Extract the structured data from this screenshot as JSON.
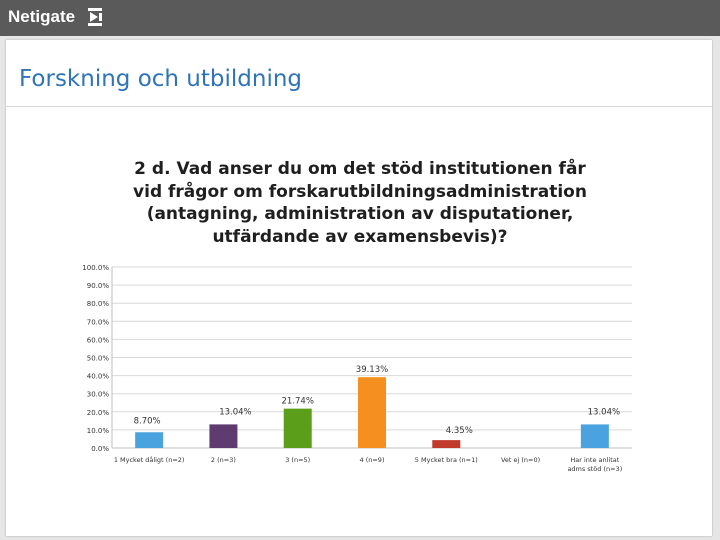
{
  "header": {
    "brand": "Netigate"
  },
  "slide": {
    "title": "Forskning och utbildning"
  },
  "colors": {
    "header_bg": "#5a5a5a",
    "slide_title": "#2f73b8"
  },
  "chart_data": {
    "type": "bar",
    "title": "2 d. Vad anser du om det stöd institutionen får vid frågor om forskarutbildningsadministration (antagning, administration av disputationer, utfärdande av examensbevis)?",
    "xlabel": "",
    "ylabel": "",
    "ylim": [
      0,
      100
    ],
    "yticks": [
      "0.0%",
      "10.0%",
      "20.0%",
      "30.0%",
      "40.0%",
      "50.0%",
      "60.0%",
      "70.0%",
      "80.0%",
      "90.0%",
      "100.0%"
    ],
    "grid": true,
    "categories": [
      [
        "1 Mycket dåligt (n=2)"
      ],
      [
        "2 (n=3)"
      ],
      [
        "3 (n=5)"
      ],
      [
        "4 (n=9)"
      ],
      [
        "5 Mycket bra (n=1)"
      ],
      [
        "Vet ej (n=0)"
      ],
      [
        "Har inte anlitat",
        "adms stöd (n=3)"
      ]
    ],
    "values": [
      8.7,
      13.04,
      21.74,
      39.13,
      4.35,
      0,
      13.04
    ],
    "labels": [
      "8.70%",
      "13.04%",
      "21.74%",
      "39.13%",
      "4.35%",
      "",
      "13.04%"
    ],
    "colors": [
      "#4aa3df",
      "#5e3c6f",
      "#5a9e1a",
      "#f5901e",
      "#c0392b",
      "#999999",
      "#4aa3df"
    ]
  }
}
